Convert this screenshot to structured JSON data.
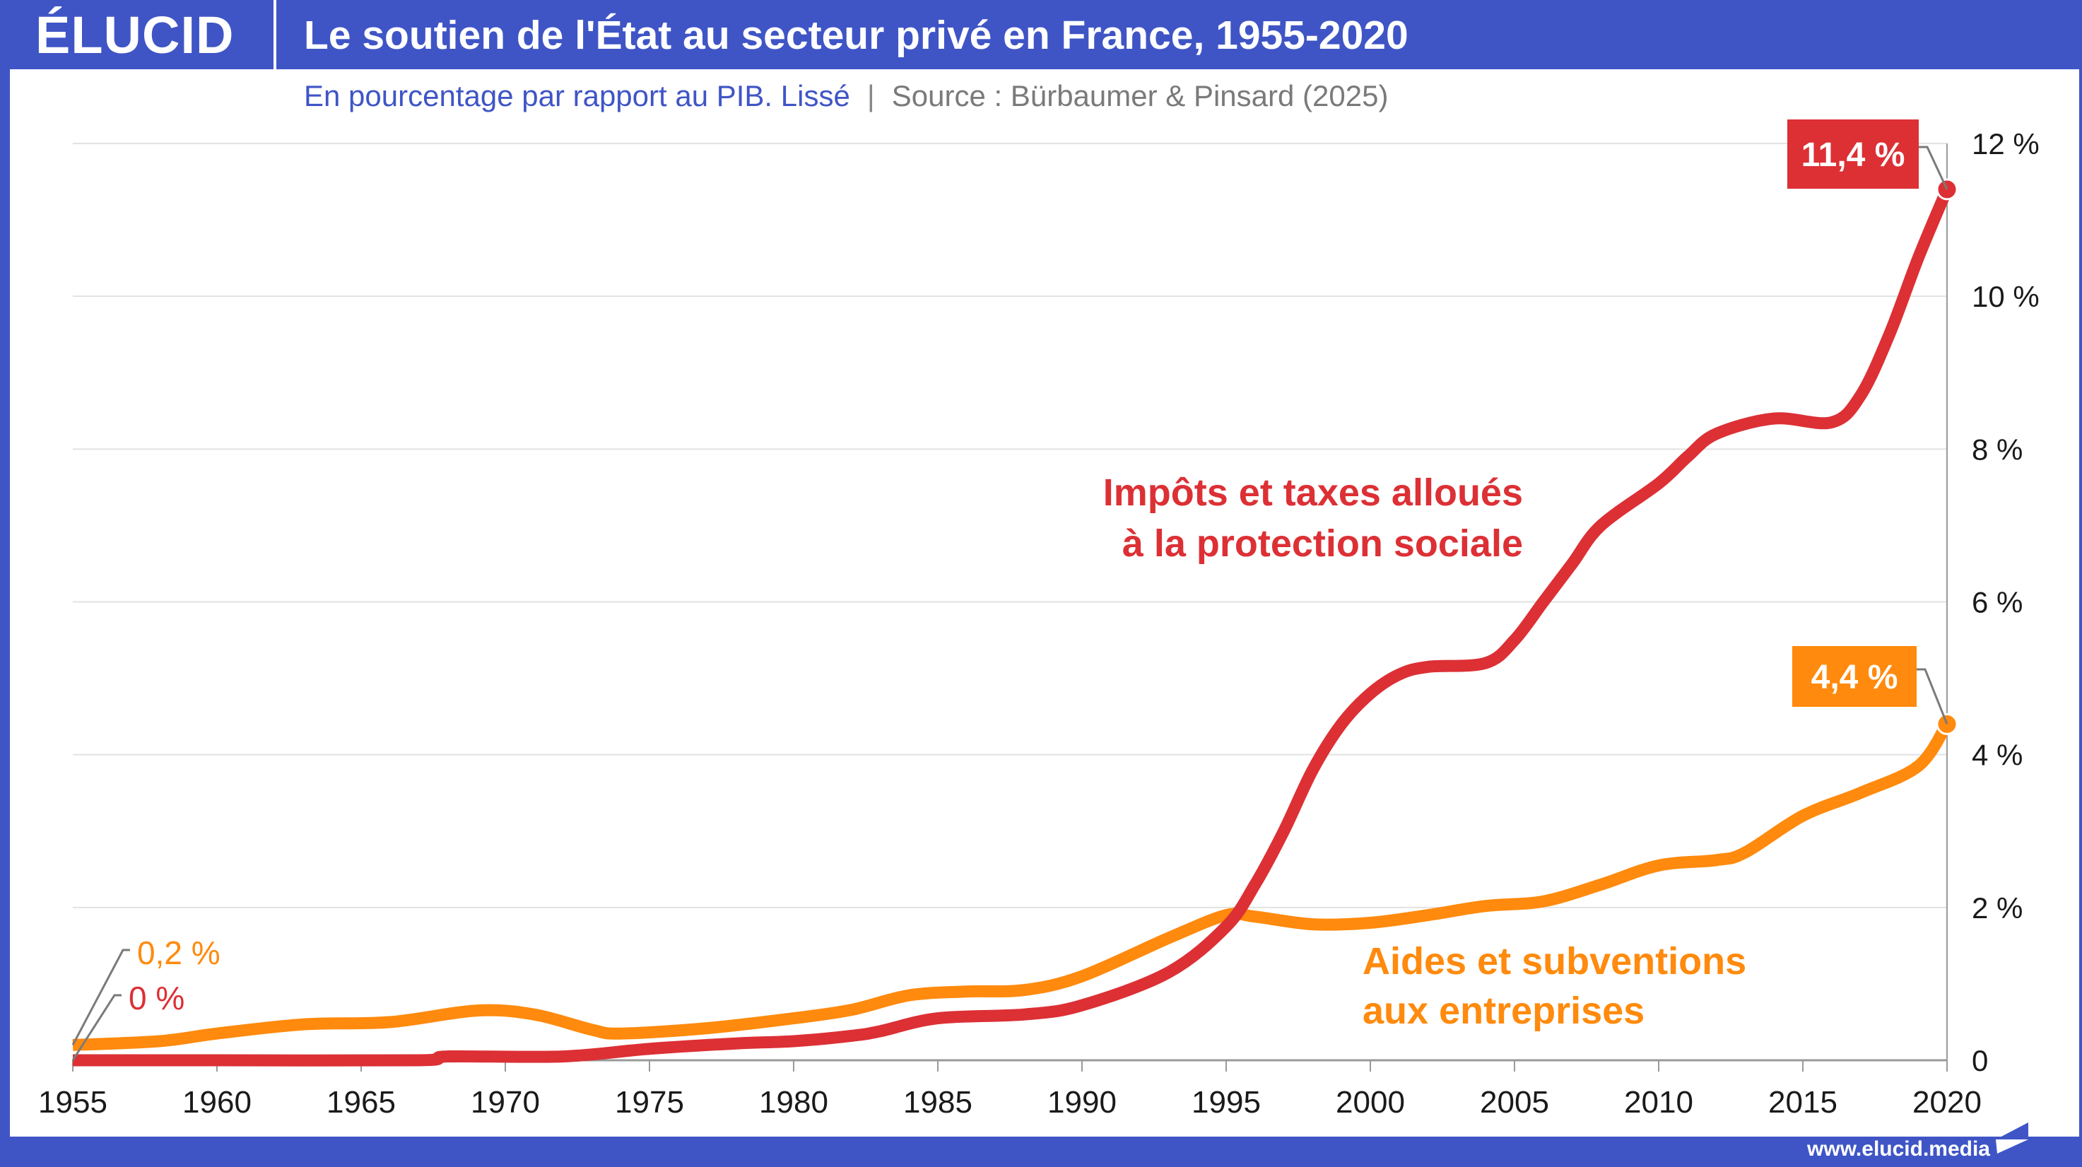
{
  "header": {
    "logo_text": "ÉLUCID",
    "title": "Le soutien de l'État au secteur privé en France, 1955-2020"
  },
  "subtitle": {
    "description": "En pourcentage par rapport au PIB. Lissé",
    "separator": "|",
    "source": "Source : Bürbaumer & Pinsard (2025)"
  },
  "footer": {
    "url": "www.elucid.media"
  },
  "colors": {
    "brand_blue": "#3f55c6",
    "red": "#dc3035",
    "orange": "#ff8a0d",
    "grid": "#e2e2e2",
    "axis": "#9a9a9a",
    "tick_text": "#1a1a1a"
  },
  "chart_data": {
    "type": "line",
    "title": "Le soutien de l'État au secteur privé en France, 1955-2020",
    "subtitle": "En pourcentage par rapport au PIB. Lissé",
    "xlabel": "",
    "ylabel": "",
    "xlim": [
      1955,
      2020
    ],
    "ylim": [
      0,
      12
    ],
    "x_ticks": [
      1955,
      1960,
      1965,
      1970,
      1975,
      1980,
      1985,
      1990,
      1995,
      2000,
      2005,
      2010,
      2015,
      2020
    ],
    "x_tick_labels": [
      "1955",
      "1960",
      "1965",
      "1970",
      "1975",
      "1980",
      "1985",
      "1990",
      "1995",
      "2000",
      "2005",
      "2010",
      "2015",
      "2020"
    ],
    "y_ticks": [
      0,
      2,
      4,
      6,
      8,
      10,
      12
    ],
    "y_tick_labels": [
      "0",
      "2 %",
      "4 %",
      "6 %",
      "8 %",
      "10 %",
      "12 %"
    ],
    "y_axis_side": "right",
    "grid": true,
    "series": [
      {
        "name": "Impôts et taxes alloués à la protection sociale",
        "label_lines": [
          "Impôts et taxes alloués",
          "à la protection sociale"
        ],
        "color": "#dc3035",
        "start_label": "0 %",
        "end_label": "11,4 %",
        "points": [
          [
            1955,
            0
          ],
          [
            1960,
            0
          ],
          [
            1967,
            0
          ],
          [
            1968,
            0.05
          ],
          [
            1972,
            0.05
          ],
          [
            1975,
            0.15
          ],
          [
            1978,
            0.22
          ],
          [
            1980,
            0.25
          ],
          [
            1982,
            0.32
          ],
          [
            1983,
            0.38
          ],
          [
            1985,
            0.55
          ],
          [
            1988,
            0.6
          ],
          [
            1990,
            0.72
          ],
          [
            1993,
            1.15
          ],
          [
            1995,
            1.75
          ],
          [
            1996,
            2.3
          ],
          [
            1997,
            3.0
          ],
          [
            1998,
            3.8
          ],
          [
            1999,
            4.4
          ],
          [
            2000,
            4.8
          ],
          [
            2001,
            5.05
          ],
          [
            2002,
            5.15
          ],
          [
            2004,
            5.2
          ],
          [
            2005,
            5.5
          ],
          [
            2006,
            6.0
          ],
          [
            2007,
            6.5
          ],
          [
            2008,
            7.0
          ],
          [
            2010,
            7.55
          ],
          [
            2011,
            7.9
          ],
          [
            2012,
            8.2
          ],
          [
            2014,
            8.4
          ],
          [
            2016,
            8.35
          ],
          [
            2017,
            8.7
          ],
          [
            2018,
            9.5
          ],
          [
            2019,
            10.5
          ],
          [
            2020,
            11.4
          ]
        ]
      },
      {
        "name": "Aides et subventions aux entreprises",
        "label_lines": [
          "Aides et subventions",
          "aux entreprises"
        ],
        "color": "#ff8a0d",
        "start_label": "0,2 %",
        "end_label": "4,4 %",
        "points": [
          [
            1955,
            0.2
          ],
          [
            1958,
            0.25
          ],
          [
            1960,
            0.35
          ],
          [
            1963,
            0.47
          ],
          [
            1966,
            0.5
          ],
          [
            1969,
            0.65
          ],
          [
            1971,
            0.6
          ],
          [
            1973,
            0.4
          ],
          [
            1974,
            0.35
          ],
          [
            1977,
            0.42
          ],
          [
            1980,
            0.55
          ],
          [
            1982,
            0.66
          ],
          [
            1984,
            0.85
          ],
          [
            1986,
            0.9
          ],
          [
            1988,
            0.92
          ],
          [
            1990,
            1.1
          ],
          [
            1993,
            1.6
          ],
          [
            1995,
            1.9
          ],
          [
            1996,
            1.88
          ],
          [
            1998,
            1.78
          ],
          [
            2000,
            1.8
          ],
          [
            2002,
            1.9
          ],
          [
            2004,
            2.02
          ],
          [
            2006,
            2.08
          ],
          [
            2008,
            2.3
          ],
          [
            2010,
            2.55
          ],
          [
            2012,
            2.62
          ],
          [
            2013,
            2.72
          ],
          [
            2015,
            3.2
          ],
          [
            2017,
            3.5
          ],
          [
            2019,
            3.85
          ],
          [
            2020,
            4.4
          ]
        ]
      }
    ],
    "annotations": [
      {
        "text": "11,4 %",
        "x": 2020,
        "y": 11.4,
        "style": "boxed",
        "series": 0
      },
      {
        "text": "4,4 %",
        "x": 2020,
        "y": 4.4,
        "style": "boxed",
        "series": 1
      },
      {
        "text": "0,2 %",
        "x": 1955,
        "y": 0.2,
        "style": "plain",
        "series": 1
      },
      {
        "text": "0 %",
        "x": 1955,
        "y": 0,
        "style": "plain",
        "series": 0
      }
    ]
  }
}
